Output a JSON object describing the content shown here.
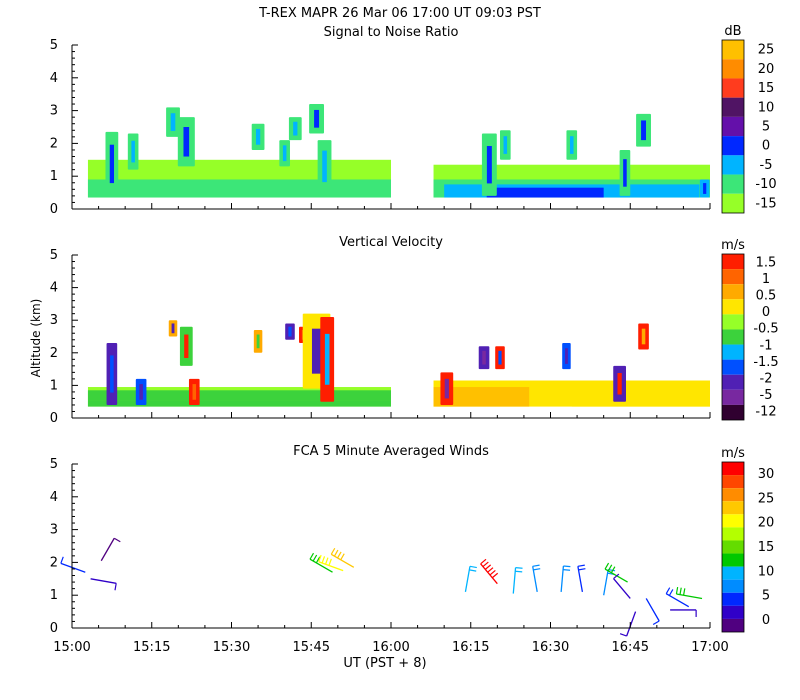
{
  "header": {
    "title": "T-REX   MAPR 26 Mar 06   17:00 UT   09:03   PST"
  },
  "chart_data": {
    "type": "heatmap",
    "x_ticks": [
      "15:00",
      "15:15",
      "15:30",
      "15:45",
      "16:00",
      "16:15",
      "16:30",
      "16:45",
      "17:00"
    ],
    "xlabel": "UT  (PST + 8)",
    "ylabel": "Altitude (km)",
    "y_ticks": [
      "0",
      "1",
      "2",
      "3",
      "4",
      "5"
    ],
    "ylim": [
      0,
      5
    ],
    "x_minutes": [
      0,
      120
    ],
    "panels": [
      {
        "title": "Signal to Noise Ratio",
        "unit": "dB",
        "colorbar_labels": [
          "25",
          "20",
          "15",
          "10",
          "5",
          "0",
          "-5",
          "-10",
          "-15"
        ],
        "colors": [
          "#ffc000",
          "#ff8c00",
          "#ff3c1e",
          "#501464",
          "#6410aa",
          "#0028ff",
          "#00b4ff",
          "#3ce678",
          "#96ff28"
        ],
        "data_gap_minutes": [
          60,
          68
        ],
        "layers": [
          {
            "x0": 3,
            "x1": 60,
            "z0": 0.35,
            "z1": 1.5,
            "color": "#96ff28"
          },
          {
            "x0": 3,
            "x1": 60,
            "z0": 0.35,
            "z1": 0.9,
            "color": "#3ce678"
          },
          {
            "x0": 68,
            "x1": 120,
            "z0": 0.35,
            "z1": 1.35,
            "color": "#96ff28"
          },
          {
            "x0": 68,
            "x1": 120,
            "z0": 0.35,
            "z1": 0.9,
            "color": "#3ce678"
          },
          {
            "x0": 70,
            "x1": 118,
            "z0": 0.35,
            "z1": 0.75,
            "color": "#00b4ff"
          },
          {
            "x0": 78,
            "x1": 100,
            "z0": 0.35,
            "z1": 0.65,
            "color": "#0028ff"
          }
        ],
        "plumes": [
          {
            "x": 7.5,
            "z0": 0.4,
            "z1": 2.35,
            "w": 1.2,
            "color": "#3ce678",
            "core": "#0028ff"
          },
          {
            "x": 11.5,
            "z0": 1.2,
            "z1": 2.3,
            "w": 1.0,
            "color": "#3ce678",
            "core": "#00b4ff"
          },
          {
            "x": 19,
            "z0": 2.2,
            "z1": 3.1,
            "w": 1.3,
            "color": "#3ce678",
            "core": "#00b4ff"
          },
          {
            "x": 21.5,
            "z0": 1.3,
            "z1": 2.8,
            "w": 1.6,
            "color": "#3ce678",
            "core": "#0028ff"
          },
          {
            "x": 35,
            "z0": 1.8,
            "z1": 2.6,
            "w": 1.2,
            "color": "#3ce678",
            "core": "#00b4ff"
          },
          {
            "x": 40,
            "z0": 1.3,
            "z1": 2.1,
            "w": 1.0,
            "color": "#3ce678",
            "core": "#00b4ff"
          },
          {
            "x": 42,
            "z0": 2.1,
            "z1": 2.8,
            "w": 1.2,
            "color": "#3ce678",
            "core": "#00b4ff"
          },
          {
            "x": 46,
            "z0": 2.3,
            "z1": 3.2,
            "w": 1.4,
            "color": "#3ce678",
            "core": "#0028ff"
          },
          {
            "x": 47.5,
            "z0": 0.5,
            "z1": 2.1,
            "w": 1.3,
            "color": "#3ce678",
            "core": "#00b4ff"
          },
          {
            "x": 78.5,
            "z0": 0.4,
            "z1": 2.3,
            "w": 1.4,
            "color": "#3ce678",
            "core": "#0028ff"
          },
          {
            "x": 81.5,
            "z0": 1.5,
            "z1": 2.4,
            "w": 1.0,
            "color": "#3ce678",
            "core": "#00b4ff"
          },
          {
            "x": 94,
            "z0": 1.5,
            "z1": 2.4,
            "w": 1.0,
            "color": "#3ce678",
            "core": "#00b4ff"
          },
          {
            "x": 104,
            "z0": 0.4,
            "z1": 1.8,
            "w": 1.0,
            "color": "#3ce678",
            "core": "#0028ff"
          },
          {
            "x": 107.5,
            "z0": 1.9,
            "z1": 2.9,
            "w": 1.4,
            "color": "#3ce678",
            "core": "#0028ff"
          },
          {
            "x": 119,
            "z0": 0.35,
            "z1": 0.9,
            "w": 0.9,
            "color": "#00b4ff",
            "core": "#0028ff"
          }
        ]
      },
      {
        "title": "Vertical Velocity",
        "unit": "m/s",
        "colorbar_labels": [
          "1.5",
          "1",
          "0.5",
          "0",
          "-0.5",
          "-1",
          "-1.5",
          "-2",
          "-5",
          "-12"
        ],
        "colors": [
          "#ff1e00",
          "#ff6400",
          "#ffaa00",
          "#ffe600",
          "#96ff28",
          "#3cd23c",
          "#00b4ff",
          "#0050ff",
          "#5020b4",
          "#7828a0",
          "#300030"
        ],
        "data_gap_minutes": [
          60,
          68
        ],
        "layers": [
          {
            "x0": 3,
            "x1": 60,
            "z0": 0.35,
            "z1": 0.95,
            "color": "#96ff28"
          },
          {
            "x0": 3,
            "x1": 60,
            "z0": 0.35,
            "z1": 0.55,
            "color": "#3cd23c"
          },
          {
            "x0": 3,
            "x1": 60,
            "z0": 0.55,
            "z1": 0.85,
            "color": "#3cd23c"
          },
          {
            "x0": 68,
            "x1": 120,
            "z0": 0.35,
            "z1": 1.15,
            "color": "#ffe600"
          },
          {
            "x0": 68,
            "x1": 86,
            "z0": 0.35,
            "z1": 0.95,
            "color": "#ffc000"
          },
          {
            "x0": 94,
            "x1": 120,
            "z0": 0.35,
            "z1": 1.1,
            "color": "#ffe600"
          }
        ],
        "plumes": [
          {
            "x": 7.5,
            "z0": 0.4,
            "z1": 2.3,
            "w": 1.0,
            "color": "#5020b4",
            "core": "#0050ff"
          },
          {
            "x": 13,
            "z0": 0.4,
            "z1": 1.2,
            "w": 1.0,
            "color": "#0050ff",
            "core": "#5020b4"
          },
          {
            "x": 19,
            "z0": 2.5,
            "z1": 3.0,
            "w": 0.8,
            "color": "#ffaa00",
            "core": "#5020b4"
          },
          {
            "x": 21.5,
            "z0": 1.6,
            "z1": 2.8,
            "w": 1.2,
            "color": "#3cd23c",
            "core": "#ff1e00"
          },
          {
            "x": 23,
            "z0": 0.4,
            "z1": 1.2,
            "w": 1.0,
            "color": "#ff1e00",
            "core": "#ff6400"
          },
          {
            "x": 35,
            "z0": 2.0,
            "z1": 2.7,
            "w": 0.8,
            "color": "#ffaa00",
            "core": "#3cd23c"
          },
          {
            "x": 41,
            "z0": 2.4,
            "z1": 2.9,
            "w": 0.9,
            "color": "#5020b4",
            "core": "#0050ff"
          },
          {
            "x": 43.5,
            "z0": 2.3,
            "z1": 2.8,
            "w": 0.8,
            "color": "#ff1e00",
            "core": "#ff6400"
          },
          {
            "x": 46,
            "z0": 0.9,
            "z1": 3.2,
            "w": 2.6,
            "color": "#ffe600",
            "core": "#5020b4"
          },
          {
            "x": 48,
            "z0": 0.5,
            "z1": 3.1,
            "w": 1.3,
            "color": "#ff1e00",
            "core": "#00b4ff"
          },
          {
            "x": 70.5,
            "z0": 0.4,
            "z1": 1.4,
            "w": 1.2,
            "color": "#ff1e00",
            "core": "#7828a0"
          },
          {
            "x": 77.5,
            "z0": 1.5,
            "z1": 2.2,
            "w": 1.0,
            "color": "#5020b4",
            "core": "#7828a0"
          },
          {
            "x": 80.5,
            "z0": 1.5,
            "z1": 2.2,
            "w": 0.9,
            "color": "#ff1e00",
            "core": "#0050ff"
          },
          {
            "x": 93,
            "z0": 1.5,
            "z1": 2.3,
            "w": 0.8,
            "color": "#0050ff",
            "core": "#5020b4"
          },
          {
            "x": 103,
            "z0": 0.5,
            "z1": 1.6,
            "w": 1.2,
            "color": "#5020b4",
            "core": "#ff1e00"
          },
          {
            "x": 107.5,
            "z0": 2.1,
            "z1": 2.9,
            "w": 1.0,
            "color": "#ff1e00",
            "core": "#ffaa00"
          }
        ]
      },
      {
        "title": "FCA 5 Minute Averaged Winds",
        "unit": "m/s",
        "colorbar_labels": [
          "30",
          "25",
          "20",
          "15",
          "10",
          "5",
          "0"
        ],
        "colors": [
          "#ff0000",
          "#ff4600",
          "#ff8c00",
          "#ffc800",
          "#ffff00",
          "#b4ff00",
          "#64dc00",
          "#00c800",
          "#00b4ff",
          "#008cff",
          "#0028ff",
          "#3000c8",
          "#500080"
        ],
        "barbs": [
          {
            "x": 2.5,
            "z": 1.7,
            "dir": 290,
            "spd": 4,
            "color": "#0028ff"
          },
          {
            "x": 3.5,
            "z": 1.5,
            "dir": 100,
            "spd": 3,
            "color": "#3000c8"
          },
          {
            "x": 5.5,
            "z": 2.05,
            "dir": 30,
            "spd": 4,
            "color": "#500080"
          },
          {
            "x": 49,
            "z": 1.7,
            "dir": 300,
            "spd": 14,
            "color": "#00c800"
          },
          {
            "x": 51,
            "z": 1.75,
            "dir": 290,
            "spd": 20,
            "color": "#ffff00"
          },
          {
            "x": 53,
            "z": 1.85,
            "dir": 300,
            "spd": 22,
            "color": "#ffc800"
          },
          {
            "x": 74,
            "z": 1.1,
            "dir": 10,
            "spd": 9,
            "color": "#00b4ff"
          },
          {
            "x": 80,
            "z": 1.35,
            "dir": 320,
            "spd": 28,
            "color": "#ff0000"
          },
          {
            "x": 83,
            "z": 1.05,
            "dir": 5,
            "spd": 10,
            "color": "#00b4ff"
          },
          {
            "x": 87.5,
            "z": 1.1,
            "dir": 350,
            "spd": 10,
            "color": "#008cff"
          },
          {
            "x": 92,
            "z": 1.1,
            "dir": 5,
            "spd": 10,
            "color": "#008cff"
          },
          {
            "x": 96,
            "z": 1.1,
            "dir": 350,
            "spd": 8,
            "color": "#0028ff"
          },
          {
            "x": 100,
            "z": 1.0,
            "dir": 10,
            "spd": 9,
            "color": "#008cff"
          },
          {
            "x": 104.5,
            "z": 1.4,
            "dir": 300,
            "spd": 13,
            "color": "#00c800"
          },
          {
            "x": 105,
            "z": 0.9,
            "dir": 320,
            "spd": 6,
            "color": "#3000c8"
          },
          {
            "x": 106,
            "z": 0.5,
            "dir": 200,
            "spd": 5,
            "color": "#3000c8"
          },
          {
            "x": 108,
            "z": 0.9,
            "dir": 150,
            "spd": 6,
            "color": "#0028ff"
          },
          {
            "x": 112.5,
            "z": 0.55,
            "dir": 90,
            "spd": 4,
            "color": "#3000c8"
          },
          {
            "x": 116,
            "z": 0.65,
            "dir": 300,
            "spd": 8,
            "color": "#0028ff"
          },
          {
            "x": 118.5,
            "z": 0.9,
            "dir": 280,
            "spd": 13,
            "color": "#00c800"
          }
        ]
      }
    ]
  }
}
